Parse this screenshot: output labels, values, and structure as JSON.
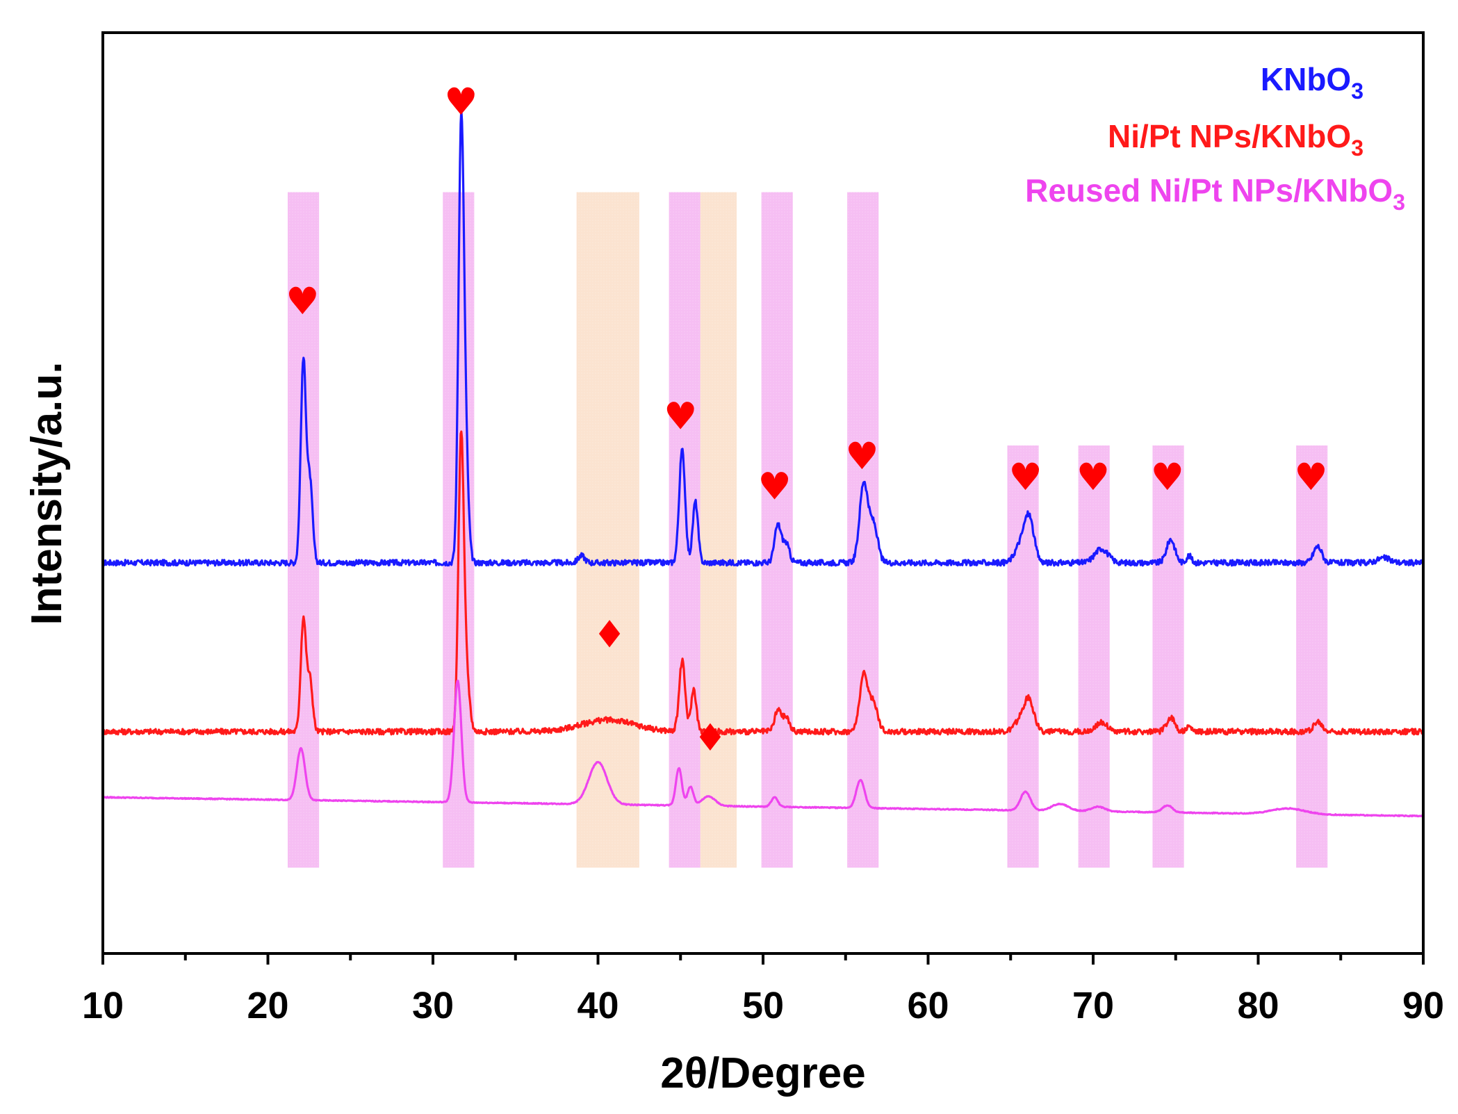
{
  "chart_data": {
    "type": "line",
    "title": "",
    "xlabel": "2θ/Degree",
    "ylabel": "Intensity/a.u.",
    "xlim": [
      10,
      90
    ],
    "xticks": [
      10,
      20,
      30,
      40,
      50,
      60,
      70,
      80,
      90
    ],
    "tick_labels": [
      "10",
      "20",
      "30",
      "40",
      "50",
      "60",
      "70",
      "80",
      "90"
    ],
    "grid": false,
    "legend_position": "top-right",
    "series": [
      {
        "name": "KNbO",
        "sub": "3",
        "color": "#1a1aff",
        "baseline": 0.43,
        "noise": 0.006,
        "peaks": [
          {
            "x": 22.15,
            "h": 0.43,
            "w": 0.16
          },
          {
            "x": 22.55,
            "h": 0.17,
            "w": 0.16
          },
          {
            "x": 31.7,
            "h": 0.86,
            "w": 0.16
          },
          {
            "x": 31.95,
            "h": 0.25,
            "w": 0.18
          },
          {
            "x": 39.0,
            "h": 0.015,
            "w": 0.2
          },
          {
            "x": 45.1,
            "h": 0.24,
            "w": 0.18
          },
          {
            "x": 45.9,
            "h": 0.13,
            "w": 0.16
          },
          {
            "x": 50.9,
            "h": 0.08,
            "w": 0.2
          },
          {
            "x": 51.4,
            "h": 0.04,
            "w": 0.2
          },
          {
            "x": 56.1,
            "h": 0.17,
            "w": 0.25
          },
          {
            "x": 56.7,
            "h": 0.08,
            "w": 0.25
          },
          {
            "x": 66.1,
            "h": 0.1,
            "w": 0.3
          },
          {
            "x": 65.5,
            "h": 0.03,
            "w": 0.3
          },
          {
            "x": 70.5,
            "h": 0.03,
            "w": 0.4
          },
          {
            "x": 74.7,
            "h": 0.05,
            "w": 0.25
          },
          {
            "x": 75.8,
            "h": 0.015,
            "w": 0.15
          },
          {
            "x": 83.6,
            "h": 0.035,
            "w": 0.25
          },
          {
            "x": 87.6,
            "h": 0.01,
            "w": 0.4
          }
        ]
      },
      {
        "name": "Ni/Pt NPs/KNbO",
        "sub": "3",
        "color": "#ff1a1a",
        "baseline": 0.07,
        "noise": 0.006,
        "peaks": [
          {
            "x": 22.15,
            "h": 0.24,
            "w": 0.16
          },
          {
            "x": 22.55,
            "h": 0.11,
            "w": 0.16
          },
          {
            "x": 31.7,
            "h": 0.6,
            "w": 0.16
          },
          {
            "x": 32.0,
            "h": 0.13,
            "w": 0.2
          },
          {
            "x": 40.6,
            "h": 0.025,
            "w": 1.6
          },
          {
            "x": 45.1,
            "h": 0.15,
            "w": 0.18
          },
          {
            "x": 45.8,
            "h": 0.09,
            "w": 0.16
          },
          {
            "x": 50.9,
            "h": 0.045,
            "w": 0.2
          },
          {
            "x": 51.4,
            "h": 0.03,
            "w": 0.2
          },
          {
            "x": 56.1,
            "h": 0.12,
            "w": 0.25
          },
          {
            "x": 56.7,
            "h": 0.06,
            "w": 0.25
          },
          {
            "x": 66.1,
            "h": 0.07,
            "w": 0.3
          },
          {
            "x": 65.5,
            "h": 0.02,
            "w": 0.3
          },
          {
            "x": 70.5,
            "h": 0.02,
            "w": 0.35
          },
          {
            "x": 74.7,
            "h": 0.03,
            "w": 0.25
          },
          {
            "x": 75.8,
            "h": 0.01,
            "w": 0.15
          },
          {
            "x": 83.6,
            "h": 0.02,
            "w": 0.25
          }
        ]
      },
      {
        "name": "Reused Ni/Pt NPs/KNbO",
        "sub": "3",
        "color": "#ee44ee",
        "baseline": -0.07,
        "baseline_slope": 0.0005,
        "noise": 0.001,
        "peaks": [
          {
            "x": 22.0,
            "h": 0.11,
            "w": 0.25
          },
          {
            "x": 31.5,
            "h": 0.26,
            "w": 0.22
          },
          {
            "x": 40.0,
            "h": 0.09,
            "w": 0.55
          },
          {
            "x": 44.9,
            "h": 0.08,
            "w": 0.18
          },
          {
            "x": 45.6,
            "h": 0.04,
            "w": 0.18
          },
          {
            "x": 46.7,
            "h": 0.02,
            "w": 0.4
          },
          {
            "x": 50.7,
            "h": 0.02,
            "w": 0.2
          },
          {
            "x": 55.9,
            "h": 0.06,
            "w": 0.25
          },
          {
            "x": 65.9,
            "h": 0.04,
            "w": 0.3
          },
          {
            "x": 68.0,
            "h": 0.015,
            "w": 0.5
          },
          {
            "x": 70.3,
            "h": 0.01,
            "w": 0.4
          },
          {
            "x": 74.5,
            "h": 0.015,
            "w": 0.3
          },
          {
            "x": 81.8,
            "h": 0.012,
            "w": 1.0
          }
        ]
      }
    ],
    "bands": [
      {
        "from": 21.2,
        "to": 23.1,
        "y_from": -0.22,
        "y_to": 1.22,
        "color": "#f3a8ef"
      },
      {
        "from": 30.6,
        "to": 32.5,
        "y_from": -0.22,
        "y_to": 1.22,
        "color": "#f3a8ef"
      },
      {
        "from": 38.7,
        "to": 42.5,
        "y_from": -0.22,
        "y_to": 1.22,
        "color": "#fad9c0"
      },
      {
        "from": 44.3,
        "to": 46.2,
        "y_from": -0.22,
        "y_to": 1.22,
        "color": "#f3a8ef"
      },
      {
        "from": 46.2,
        "to": 48.4,
        "y_from": -0.22,
        "y_to": 1.22,
        "color": "#fad9c0"
      },
      {
        "from": 49.9,
        "to": 51.8,
        "y_from": -0.22,
        "y_to": 1.22,
        "color": "#f3a8ef"
      },
      {
        "from": 55.1,
        "to": 57.0,
        "y_from": -0.22,
        "y_to": 1.22,
        "color": "#f3a8ef"
      },
      {
        "from": 64.8,
        "to": 66.7,
        "y_from": -0.22,
        "y_to": 0.68,
        "color": "#f3a8ef"
      },
      {
        "from": 69.1,
        "to": 71.0,
        "y_from": -0.22,
        "y_to": 0.68,
        "color": "#f3a8ef"
      },
      {
        "from": 73.6,
        "to": 75.5,
        "y_from": -0.22,
        "y_to": 0.68,
        "color": "#f3a8ef"
      },
      {
        "from": 82.3,
        "to": 84.2,
        "y_from": -0.22,
        "y_to": 0.68,
        "color": "#f3a8ef"
      }
    ],
    "annotations": [
      {
        "symbol": "♥",
        "x": 22.1,
        "y": 0.96,
        "color": "#ff0000"
      },
      {
        "symbol": "♥",
        "x": 31.7,
        "y": 1.385,
        "color": "#ff0000"
      },
      {
        "symbol": "♥",
        "x": 45.0,
        "y": 0.715,
        "color": "#ff0000"
      },
      {
        "symbol": "♥",
        "x": 50.7,
        "y": 0.565,
        "color": "#ff0000"
      },
      {
        "symbol": "♥",
        "x": 56.0,
        "y": 0.63,
        "color": "#ff0000"
      },
      {
        "symbol": "♥",
        "x": 65.9,
        "y": 0.585,
        "color": "#ff0000"
      },
      {
        "symbol": "♥",
        "x": 70.0,
        "y": 0.585,
        "color": "#ff0000"
      },
      {
        "symbol": "♥",
        "x": 74.5,
        "y": 0.585,
        "color": "#ff0000"
      },
      {
        "symbol": "♥",
        "x": 83.2,
        "y": 0.585,
        "color": "#ff0000"
      },
      {
        "symbol": "♦",
        "x": 40.7,
        "y": 0.25,
        "color": "#ff0000"
      },
      {
        "symbol": "♦",
        "x": 46.8,
        "y": 0.03,
        "color": "#ff0000"
      }
    ]
  }
}
